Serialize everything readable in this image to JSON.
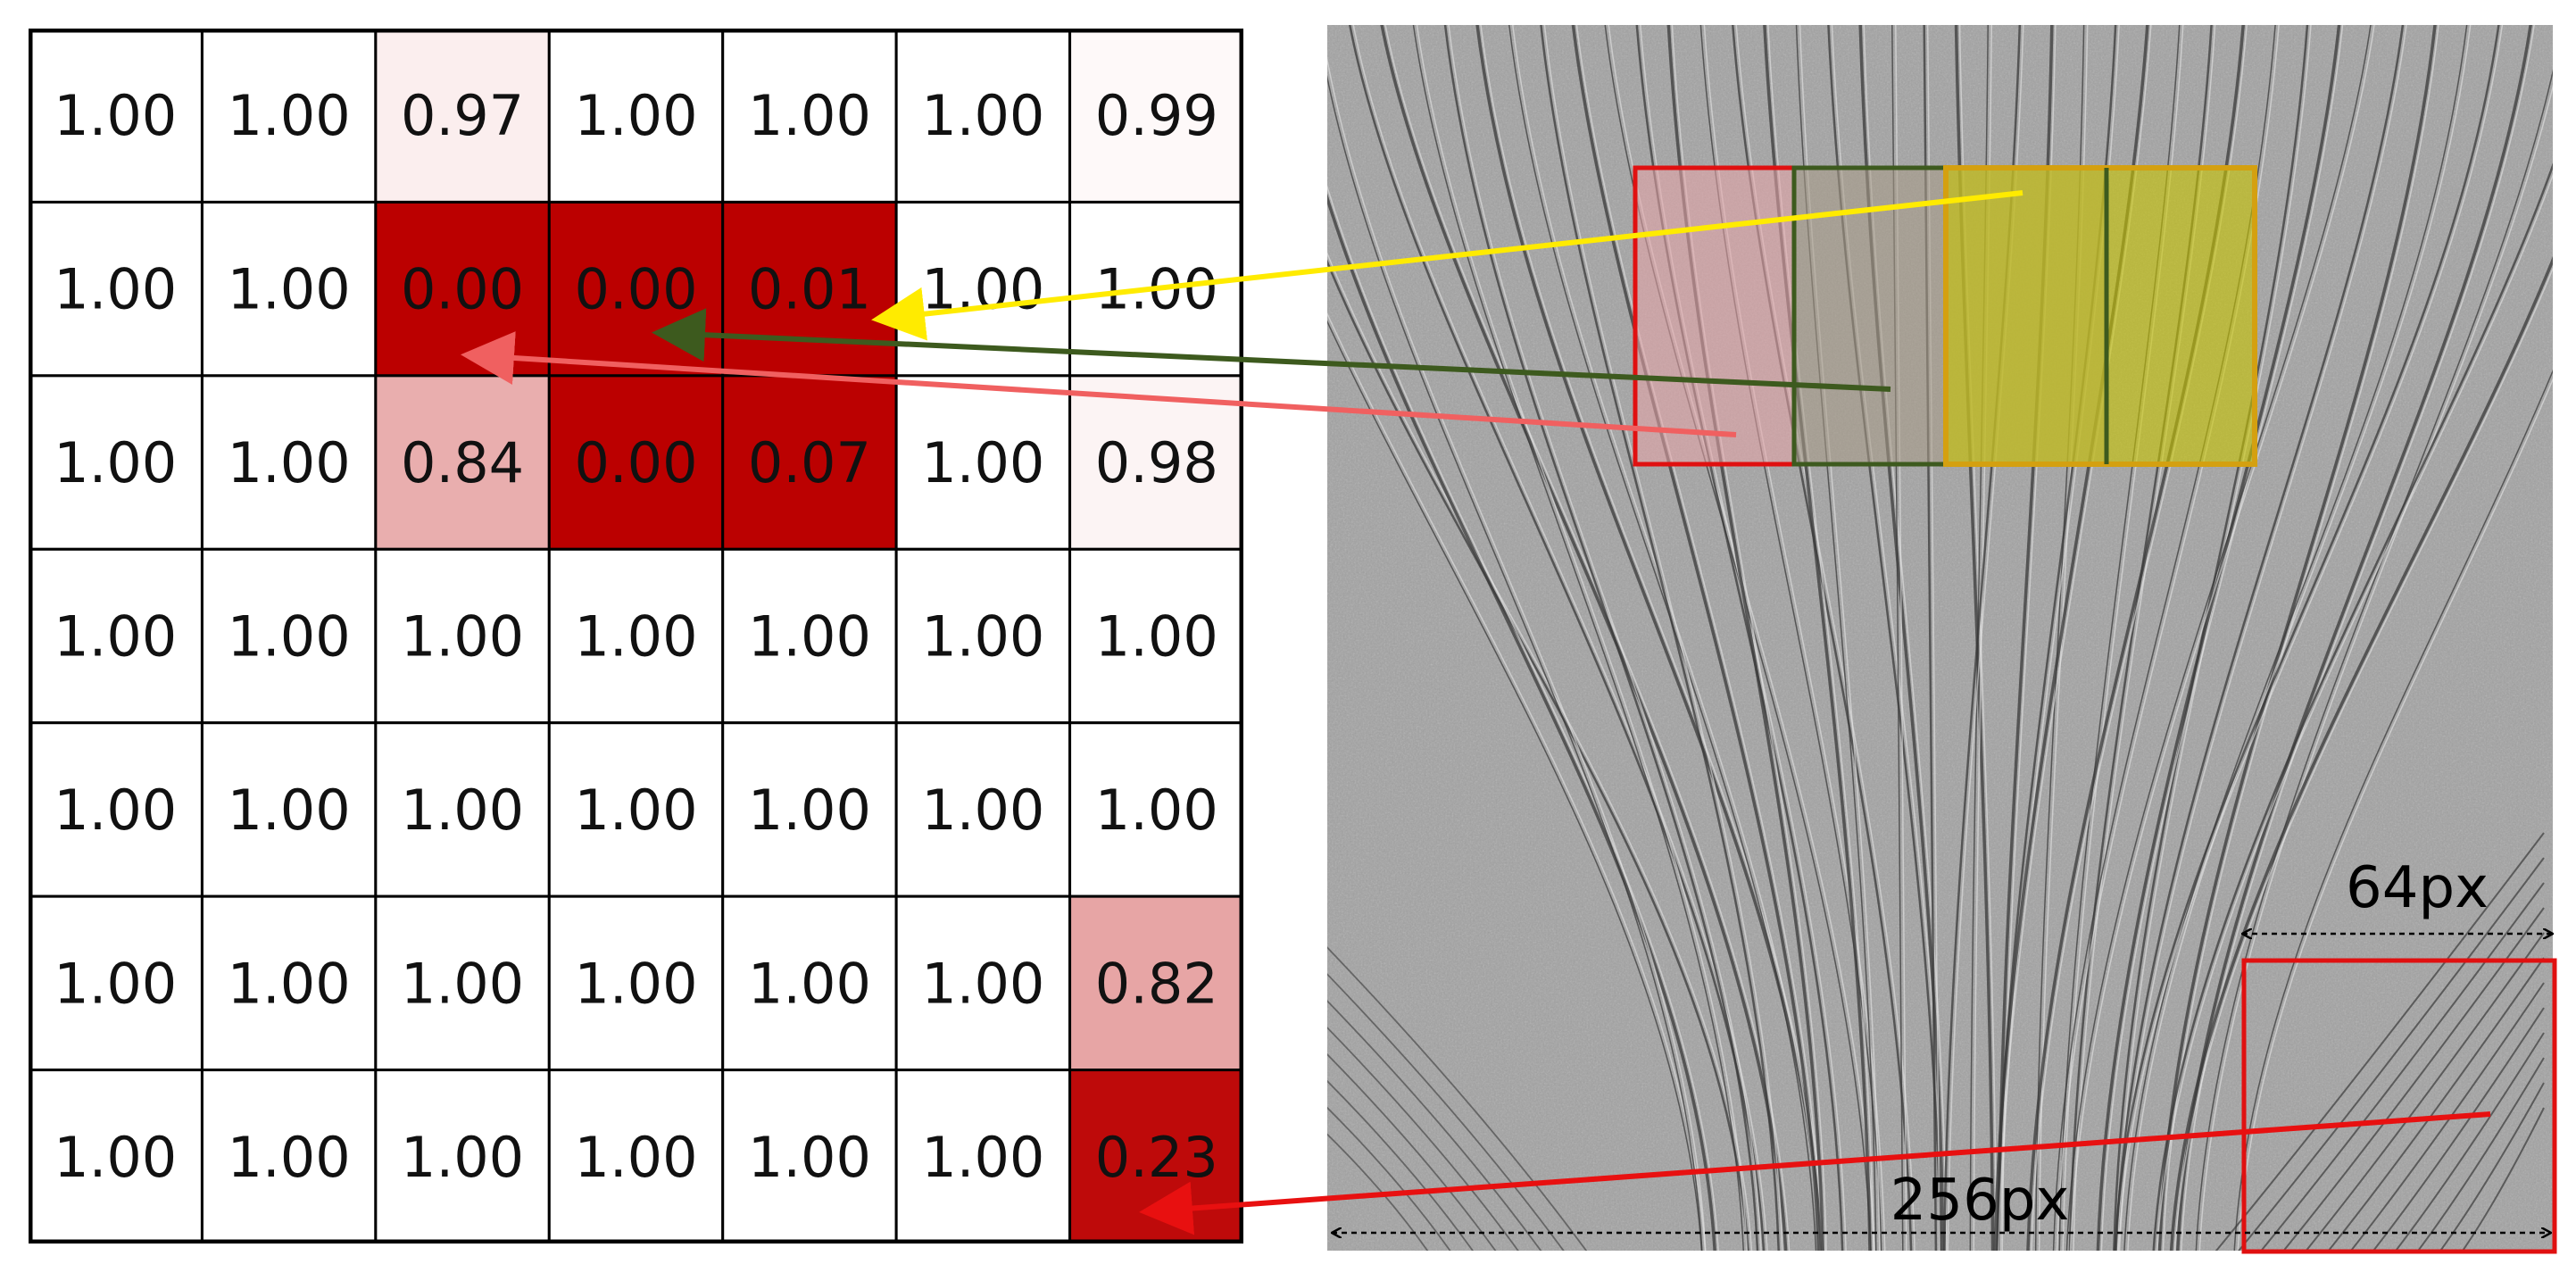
{
  "chart_data": {
    "type": "heatmap",
    "title": "",
    "rows": 7,
    "cols": 7,
    "values": [
      [
        1.0,
        1.0,
        0.97,
        1.0,
        1.0,
        1.0,
        0.99
      ],
      [
        1.0,
        1.0,
        0.0,
        0.0,
        0.01,
        1.0,
        1.0
      ],
      [
        1.0,
        1.0,
        0.84,
        0.0,
        0.07,
        1.0,
        0.98
      ],
      [
        1.0,
        1.0,
        1.0,
        1.0,
        1.0,
        1.0,
        1.0
      ],
      [
        1.0,
        1.0,
        1.0,
        1.0,
        1.0,
        1.0,
        1.0
      ],
      [
        1.0,
        1.0,
        1.0,
        1.0,
        1.0,
        1.0,
        0.82
      ],
      [
        1.0,
        1.0,
        1.0,
        1.0,
        1.0,
        1.0,
        0.23
      ]
    ],
    "labels": [
      [
        "1.00",
        "1.00",
        "0.97",
        "1.00",
        "1.00",
        "1.00",
        "0.99"
      ],
      [
        "1.00",
        "1.00",
        "0.00",
        "0.00",
        "0.01",
        "1.00",
        "1.00"
      ],
      [
        "1.00",
        "1.00",
        "0.84",
        "0.00",
        "0.07",
        "1.00",
        "0.98"
      ],
      [
        "1.00",
        "1.00",
        "1.00",
        "1.00",
        "1.00",
        "1.00",
        "1.00"
      ],
      [
        "1.00",
        "1.00",
        "1.00",
        "1.00",
        "1.00",
        "1.00",
        "1.00"
      ],
      [
        "1.00",
        "1.00",
        "1.00",
        "1.00",
        "1.00",
        "1.00",
        "0.82"
      ],
      [
        "1.00",
        "1.00",
        "1.00",
        "1.00",
        "1.00",
        "1.00",
        "0.23"
      ]
    ],
    "color_low": "#bb0000",
    "color_high": "#ffffff"
  },
  "texture": {
    "background_color": "#a3a3a3",
    "streak_color": "#3a3a3a",
    "highlight_color": "#e6e6e6"
  },
  "patches": [
    {
      "name": "red-patch",
      "color": "#e01010",
      "fill": "#e8a4a8",
      "target_cell": [
        1,
        2
      ]
    },
    {
      "name": "green-patch",
      "color": "#3d5a1e",
      "fill": "#a89a86",
      "target_cell": [
        1,
        3
      ]
    },
    {
      "name": "olive-patch",
      "color": "#d4a010",
      "fill": "#c8c400",
      "target_cell": [
        1,
        4
      ]
    },
    {
      "name": "corner-patch",
      "color": "#e01010",
      "fill": "none",
      "target_cell": [
        6,
        6
      ]
    }
  ],
  "arrows": [
    {
      "name": "yellow-arrow",
      "color": "#ffeb00"
    },
    {
      "name": "green-arrow",
      "color": "#3d5a1e"
    },
    {
      "name": "salmon-arrow",
      "color": "#f06060"
    },
    {
      "name": "red-arrow",
      "color": "#e81010"
    }
  ],
  "dimensions": {
    "patch_label": "64px",
    "image_label": "256px"
  }
}
